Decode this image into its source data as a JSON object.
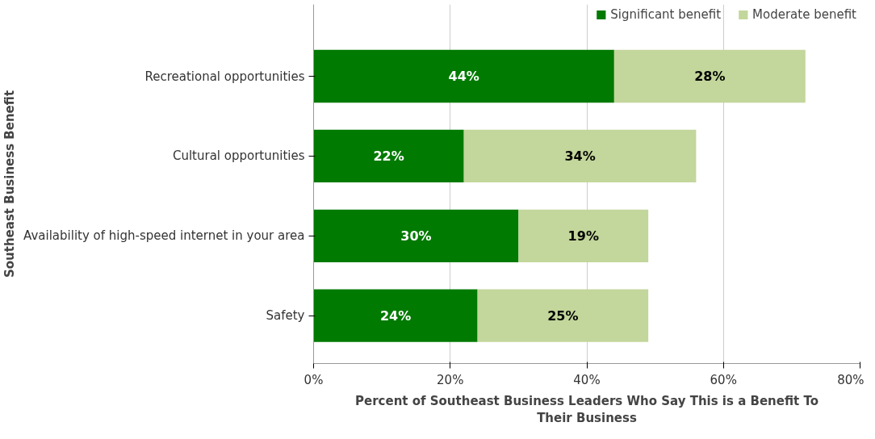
{
  "chart_data": {
    "type": "bar",
    "orientation": "horizontal",
    "stacked": true,
    "categories": [
      "Recreational opportunities",
      "Cultural opportunities",
      "Availability of high-speed internet in your area",
      "Safety"
    ],
    "series": [
      {
        "name": "Significant benefit",
        "color": "#007a00",
        "values": [
          44,
          22,
          30,
          24
        ]
      },
      {
        "name": "Moderate benefit",
        "color": "#c3d69b",
        "values": [
          28,
          34,
          19,
          25
        ]
      }
    ],
    "xlim": [
      0,
      80
    ],
    "xticks": [
      {
        "value": 0,
        "label": "0%"
      },
      {
        "value": 20,
        "label": "20%"
      },
      {
        "value": 40,
        "label": "40%"
      },
      {
        "value": 60,
        "label": "60%"
      },
      {
        "value": 80,
        "label": "80%"
      }
    ],
    "xlabel": "Percent of Southeast Business Leaders Who Say This is a Benefit To Their Business",
    "ylabel": "Southeast Business Benefit",
    "value_labels": [
      [
        "44%",
        "22%",
        "30%",
        "24%"
      ],
      [
        "28%",
        "34%",
        "19%",
        "25%"
      ]
    ],
    "grid": "x",
    "legend": "top right"
  }
}
